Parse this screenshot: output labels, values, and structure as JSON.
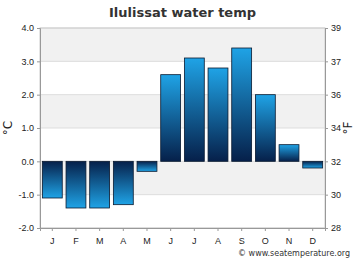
{
  "chart_data": {
    "type": "bar",
    "title": "Ilulissat water temp",
    "categories": [
      "J",
      "F",
      "M",
      "A",
      "M",
      "J",
      "J",
      "A",
      "S",
      "O",
      "N",
      "D"
    ],
    "values": [
      -1.1,
      -1.4,
      -1.4,
      -1.3,
      -0.3,
      2.6,
      3.1,
      2.8,
      3.4,
      2.0,
      0.5,
      -0.2
    ],
    "color": "#1fa3e6",
    "ylabel": "°C",
    "y2label": "°F",
    "ylim": [
      -2,
      4
    ],
    "yticks": [
      {
        "value": -2,
        "label": "-2.0"
      },
      {
        "value": -1,
        "label": "-1.0"
      },
      {
        "value": 0,
        "label": "0.0"
      },
      {
        "value": 1,
        "label": "1.0"
      },
      {
        "value": 2,
        "label": "2.0"
      },
      {
        "value": 3,
        "label": "3.0"
      },
      {
        "value": 4,
        "label": "4.0"
      }
    ],
    "y2lim": [
      28.4,
      39.2
    ],
    "y2ticks": [
      {
        "value": 28.4,
        "label": "28"
      },
      {
        "value": 30.2,
        "label": "30"
      },
      {
        "value": 32,
        "label": "32"
      },
      {
        "value": 33.8,
        "label": "34"
      },
      {
        "value": 35.6,
        "label": "36"
      },
      {
        "value": 37.4,
        "label": "37"
      },
      {
        "value": 39.2,
        "label": "39"
      }
    ],
    "grid": true,
    "annotations": [
      "© www.seatemperature.org"
    ]
  }
}
